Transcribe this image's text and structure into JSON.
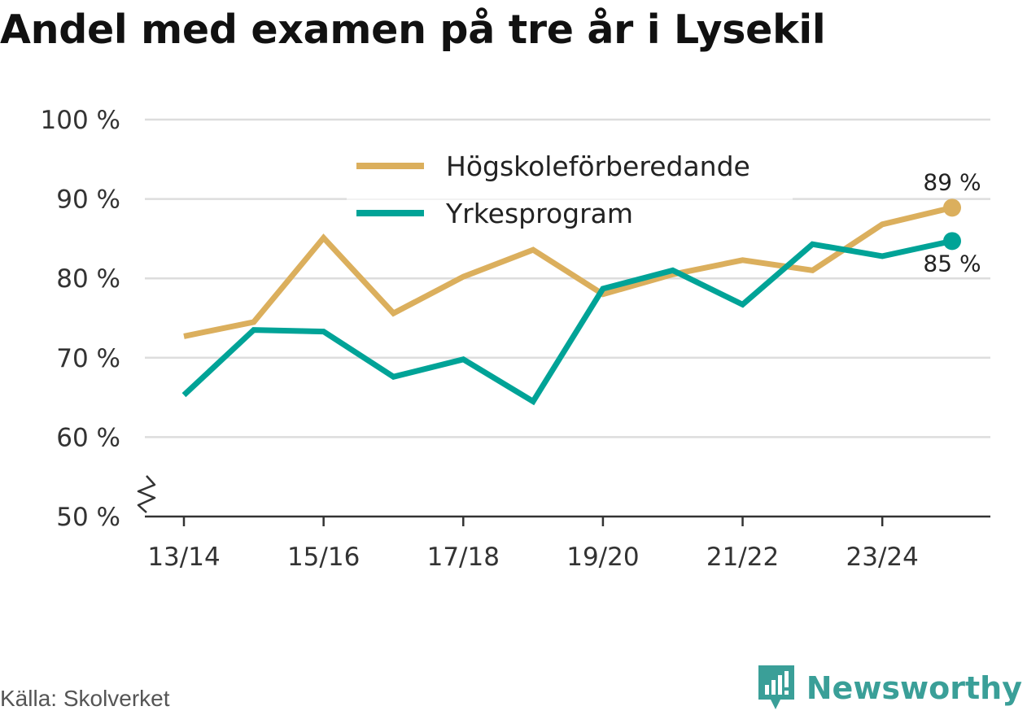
{
  "title": "Andel med examen på tre år i Lysekil",
  "source": "Källa: Skolverket",
  "brand": "Newsworthy",
  "colors": {
    "series1": "#dbaf5d",
    "series2": "#00a397",
    "grid": "#dddddd",
    "axis": "#333333",
    "text": "#333333",
    "brand": "#3a9f98"
  },
  "chart_data": {
    "type": "line",
    "x": [
      "13/14",
      "14/15",
      "15/16",
      "16/17",
      "17/18",
      "18/19",
      "19/20",
      "20/21",
      "21/22",
      "22/23",
      "23/24",
      "24/25"
    ],
    "x_tick_labels": [
      "13/14",
      "15/16",
      "17/18",
      "19/20",
      "21/22",
      "23/24"
    ],
    "y_ticks": [
      50,
      60,
      70,
      80,
      90,
      100
    ],
    "y_tick_labels": [
      "50 %",
      "60 %",
      "70 %",
      "80 %",
      "90 %",
      "100 %"
    ],
    "ylim": [
      50,
      100
    ],
    "y_axis_break": true,
    "grid": true,
    "legend_position": "top-center",
    "series": [
      {
        "name": "Högskoleförberedande",
        "color": "#dbaf5d",
        "values": [
          72.7,
          74.5,
          85.1,
          75.6,
          80.2,
          83.6,
          78.0,
          80.5,
          82.3,
          81.0,
          86.8,
          88.9
        ],
        "end_label": "89 %",
        "end_label_position": "above"
      },
      {
        "name": "Yrkesprogram",
        "color": "#00a397",
        "values": [
          65.3,
          73.5,
          73.3,
          67.6,
          69.8,
          64.5,
          78.7,
          81.0,
          76.7,
          84.3,
          82.8,
          84.7
        ],
        "end_label": "85 %",
        "end_label_position": "below"
      }
    ]
  }
}
